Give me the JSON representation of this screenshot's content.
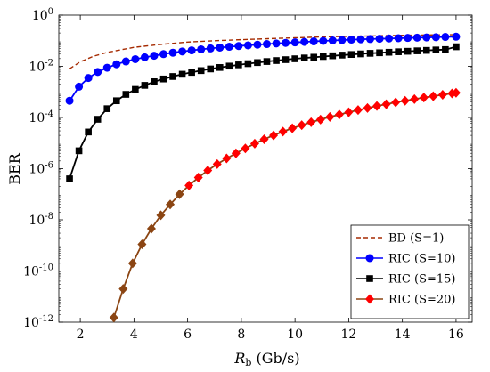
{
  "chart_data": {
    "type": "line",
    "xlabel": "R",
    "xlabel_sub": "b",
    "xlabel_unit": " (Gb/s)",
    "ylabel": "BER",
    "xlim": [
      1.2,
      16.6
    ],
    "ylim": [
      1e-12,
      1
    ],
    "y_scale": "log",
    "grid": false,
    "legend_position": "bottom-right",
    "x_ticks": [
      {
        "value": 2,
        "label": "2"
      },
      {
        "value": 4,
        "label": "4"
      },
      {
        "value": 6,
        "label": "6"
      },
      {
        "value": 8,
        "label": "8"
      },
      {
        "value": 10,
        "label": "10"
      },
      {
        "value": 12,
        "label": "12"
      },
      {
        "value": 14,
        "label": "14"
      },
      {
        "value": 16,
        "label": "16"
      }
    ],
    "y_ticks": [
      {
        "exp": 0,
        "base": "10",
        "sup": "0"
      },
      {
        "exp": -2,
        "base": "10",
        "sup": "-2"
      },
      {
        "exp": -4,
        "base": "10",
        "sup": "-4"
      },
      {
        "exp": -6,
        "base": "10",
        "sup": "-6"
      },
      {
        "exp": -8,
        "base": "10",
        "sup": "-8"
      },
      {
        "exp": -10,
        "base": "10",
        "sup": "-10"
      },
      {
        "exp": -12,
        "base": "10",
        "sup": "-12"
      }
    ],
    "series": [
      {
        "name": "BD (S=1)",
        "color": "#a52a00",
        "style": "dashed",
        "marker": "none",
        "x": [
          1.6,
          2,
          2.5,
          3,
          4,
          5,
          6,
          7,
          8,
          9,
          10,
          11,
          12,
          13,
          14,
          15,
          16
        ],
        "y": [
          0.008,
          0.015,
          0.025,
          0.035,
          0.055,
          0.072,
          0.088,
          0.1,
          0.11,
          0.12,
          0.13,
          0.14,
          0.148,
          0.155,
          0.162,
          0.168,
          0.172
        ]
      },
      {
        "name": "RIC (S=10)",
        "color": "#0000ff",
        "style": "solid",
        "marker": "circle",
        "x": [
          1.6,
          1.95,
          2.3,
          2.65,
          3.0,
          3.35,
          3.7,
          4.05,
          4.4,
          4.75,
          5.1,
          5.45,
          5.8,
          6.15,
          6.5,
          6.85,
          7.2,
          7.55,
          7.9,
          8.25,
          8.6,
          8.95,
          9.3,
          9.65,
          10.0,
          10.35,
          10.7,
          11.05,
          11.4,
          11.75,
          12.1,
          12.45,
          12.8,
          13.15,
          13.5,
          13.85,
          14.2,
          14.55,
          14.9,
          15.25,
          15.6,
          16.0
        ],
        "y": [
          0.00045,
          0.0016,
          0.0035,
          0.006,
          0.0088,
          0.012,
          0.0155,
          0.019,
          0.0225,
          0.026,
          0.03,
          0.034,
          0.038,
          0.042,
          0.046,
          0.05,
          0.054,
          0.058,
          0.062,
          0.066,
          0.07,
          0.074,
          0.078,
          0.082,
          0.086,
          0.09,
          0.094,
          0.098,
          0.102,
          0.106,
          0.11,
          0.113,
          0.116,
          0.119,
          0.122,
          0.125,
          0.128,
          0.131,
          0.134,
          0.137,
          0.14,
          0.143
        ]
      },
      {
        "name": "RIC (S=15)",
        "color": "#000000",
        "style": "solid",
        "marker": "square",
        "x": [
          1.6,
          1.95,
          2.3,
          2.65,
          3.0,
          3.35,
          3.7,
          4.05,
          4.4,
          4.75,
          5.1,
          5.45,
          5.8,
          6.15,
          6.5,
          6.85,
          7.2,
          7.55,
          7.9,
          8.25,
          8.6,
          8.95,
          9.3,
          9.65,
          10.0,
          10.35,
          10.7,
          11.05,
          11.4,
          11.75,
          12.1,
          12.45,
          12.8,
          13.15,
          13.5,
          13.85,
          14.2,
          14.55,
          14.9,
          15.25,
          15.6,
          16.0
        ],
        "y": [
          4e-07,
          5e-06,
          2.7e-05,
          8.5e-05,
          0.00022,
          0.00045,
          0.0008,
          0.00125,
          0.0018,
          0.0025,
          0.0032,
          0.004,
          0.0049,
          0.0058,
          0.0068,
          0.0079,
          0.009,
          0.0102,
          0.0114,
          0.0127,
          0.014,
          0.0154,
          0.0168,
          0.0182,
          0.0197,
          0.0212,
          0.0227,
          0.0242,
          0.0258,
          0.0274,
          0.029,
          0.0306,
          0.0322,
          0.0338,
          0.0354,
          0.037,
          0.0386,
          0.0402,
          0.0418,
          0.0434,
          0.045,
          0.058
        ]
      },
      {
        "name": "RIC (S=20)",
        "color": "#ff0000",
        "line_color": "#8b4513",
        "style": "solid",
        "marker": "diamond",
        "x": [
          3.25,
          3.6,
          3.95,
          4.3,
          4.65,
          5.0,
          5.35,
          5.7,
          6.05,
          6.4,
          6.75,
          7.1,
          7.45,
          7.8,
          8.15,
          8.5,
          8.85,
          9.2,
          9.55,
          9.9,
          10.25,
          10.6,
          10.95,
          11.3,
          11.65,
          12.0,
          12.35,
          12.7,
          13.05,
          13.4,
          13.75,
          14.1,
          14.45,
          14.8,
          15.15,
          15.5,
          15.85,
          16.0
        ],
        "y": [
          1.5e-12,
          2e-11,
          2e-10,
          1.1e-09,
          4.5e-09,
          1.5e-08,
          4e-08,
          1e-07,
          2.2e-07,
          4.5e-07,
          8.5e-07,
          1.5e-06,
          2.5e-06,
          4e-06,
          6.2e-06,
          9.5e-06,
          1.4e-05,
          2e-05,
          2.8e-05,
          3.8e-05,
          5e-05,
          6.5e-05,
          8.3e-05,
          0.000105,
          0.00013,
          0.00016,
          0.000195,
          0.000235,
          0.00028,
          0.00033,
          0.00039,
          0.00045,
          0.00052,
          0.0006,
          0.00068,
          0.00077,
          0.00087,
          0.00092
        ]
      }
    ]
  }
}
